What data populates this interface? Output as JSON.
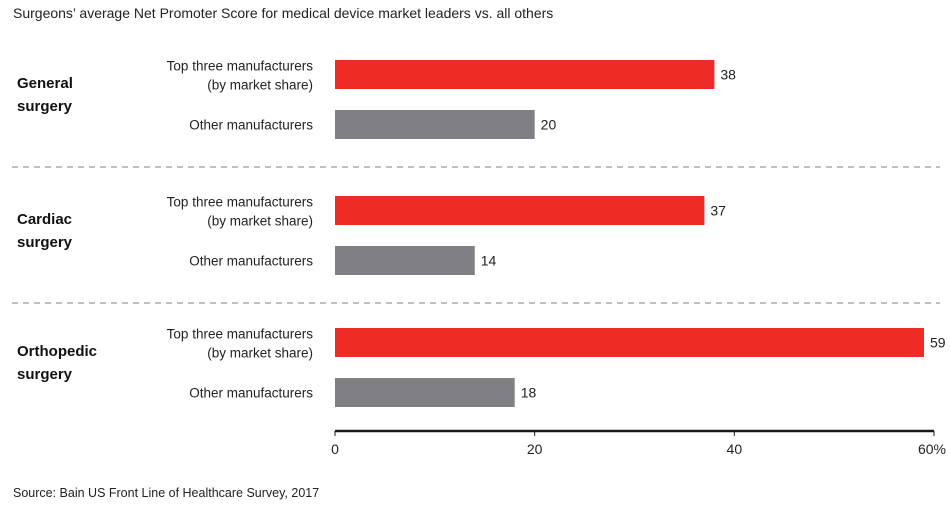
{
  "title": "Surgeons’ average Net Promoter Score for medical device market leaders vs. all others",
  "source": "Source: Bain US Front Line of Healthcare Survey, 2017",
  "colors": {
    "leaders": "#ee2b24",
    "others": "#808084",
    "axis": "#1a1a1a",
    "separator": "#9a9a9a"
  },
  "chart_data": {
    "type": "bar",
    "orientation": "horizontal",
    "xlim": [
      0,
      60
    ],
    "x_ticks": [
      "0",
      "20",
      "40",
      "60%"
    ],
    "x_tick_values": [
      0,
      20,
      40,
      60
    ],
    "groups": [
      {
        "name_lines": [
          "General",
          "surgery"
        ],
        "bars": [
          {
            "label_lines": [
              "Top three manufacturers",
              "(by market share)"
            ],
            "value": 38,
            "value_label": "38",
            "series": "leaders"
          },
          {
            "label_lines": [
              "Other manufacturers"
            ],
            "value": 20,
            "value_label": "20",
            "series": "others"
          }
        ]
      },
      {
        "name_lines": [
          "Cardiac",
          "surgery"
        ],
        "bars": [
          {
            "label_lines": [
              "Top three manufacturers",
              "(by market share)"
            ],
            "value": 37,
            "value_label": "37",
            "series": "leaders"
          },
          {
            "label_lines": [
              "Other manufacturers"
            ],
            "value": 14,
            "value_label": "14",
            "series": "others"
          }
        ]
      },
      {
        "name_lines": [
          "Orthopedic",
          "surgery"
        ],
        "bars": [
          {
            "label_lines": [
              "Top three manufacturers",
              "(by market share)"
            ],
            "value": 59,
            "value_label": "59",
            "series": "leaders"
          },
          {
            "label_lines": [
              "Other manufacturers"
            ],
            "value": 18,
            "value_label": "18",
            "series": "others"
          }
        ]
      }
    ]
  }
}
